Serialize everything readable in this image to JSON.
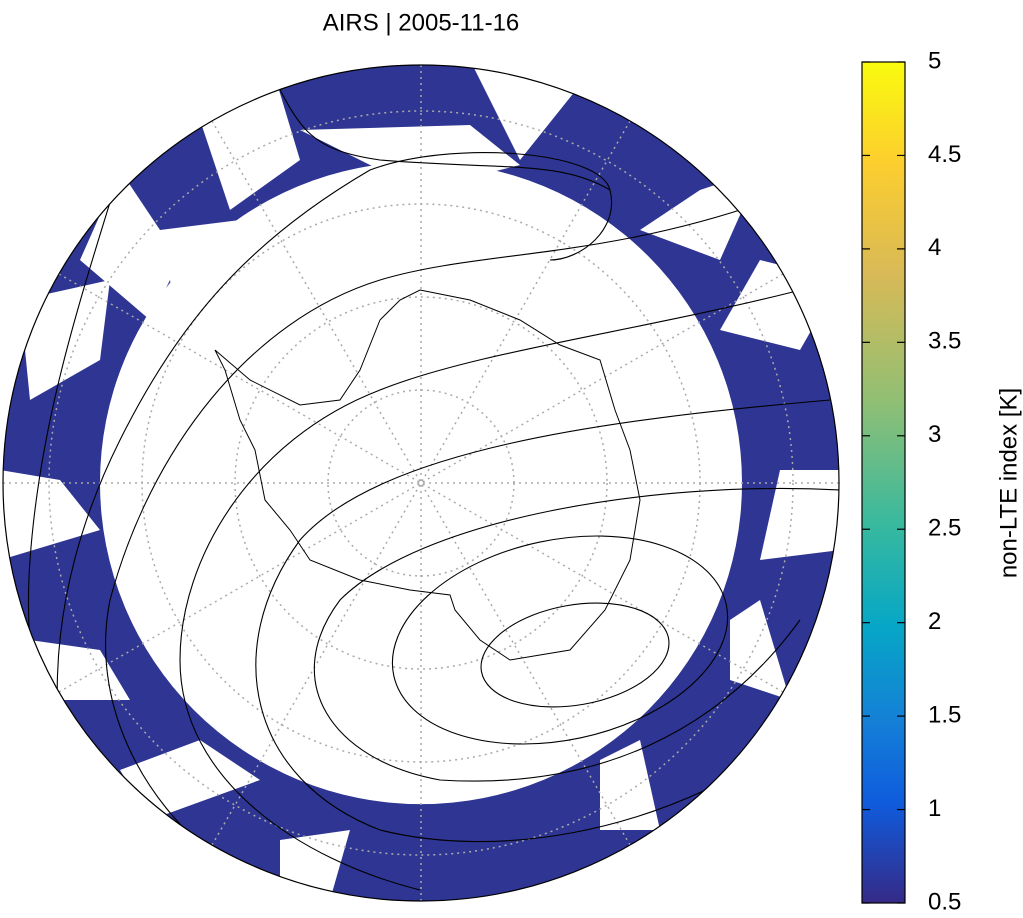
{
  "title": "AIRS | 2005-11-16",
  "colorbar": {
    "label": "non-LTE index [K]",
    "lim": [
      0.5,
      5
    ],
    "ticks": [
      0.5,
      1,
      1.5,
      2,
      2.5,
      3,
      3.5,
      4,
      4.5,
      5
    ]
  }
}
